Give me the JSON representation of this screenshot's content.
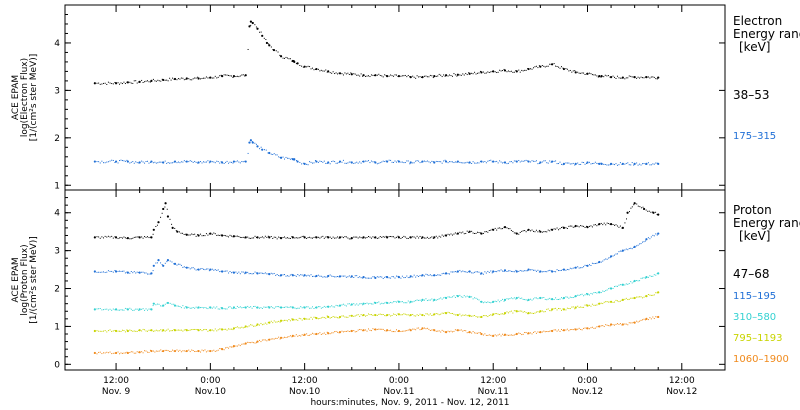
{
  "chart_data": [
    {
      "type": "scatter",
      "instrument": "ACE EPAM",
      "ylabel": "log(Electron Flux)",
      "yunits": "[1/(cm²s ster MeV)]",
      "ylim": [
        0.9,
        4.8
      ],
      "yticks": [
        1,
        2,
        3,
        4
      ],
      "legend_title": [
        "Electron",
        "Energy range",
        "[keV]"
      ],
      "series": [
        {
          "name": "38–53",
          "color": "#000000",
          "x": [
            -0.45,
            0,
            0.25,
            0.5,
            0.75,
            1,
            1.25,
            1.5,
            1.75,
            2,
            2.25,
            2.5,
            2.75,
            2.83,
            2.86,
            2.9,
            3,
            3.1,
            3.2,
            3.25,
            3.35,
            3.5,
            3.75,
            3.78,
            3.85,
            4,
            4.25,
            4.5,
            4.75,
            5,
            5.25,
            5.5,
            5.75,
            6,
            6.25,
            6.5,
            6.75,
            7,
            7.25,
            7.5,
            7.75,
            8,
            8.25,
            8.5,
            8.75,
            9,
            9.25,
            9.5,
            9.75,
            10,
            10.25,
            10.3,
            10.5,
            10.75,
            11,
            11.25,
            11.5
          ],
          "values": [
            3.15,
            3.15,
            3.17,
            3.18,
            3.2,
            3.22,
            3.24,
            3.25,
            3.25,
            3.27,
            3.3,
            3.3,
            3.32,
            4.35,
            4.45,
            4.42,
            4.3,
            4.15,
            4.0,
            3.95,
            3.85,
            3.72,
            3.62,
            3.6,
            3.57,
            3.5,
            3.45,
            3.4,
            3.36,
            3.34,
            3.32,
            3.32,
            3.3,
            3.3,
            3.28,
            3.28,
            3.3,
            3.32,
            3.33,
            3.35,
            3.38,
            3.4,
            3.42,
            3.4,
            3.45,
            3.5,
            3.55,
            3.45,
            3.38,
            3.35,
            3.3,
            3.3,
            3.28,
            3.27,
            3.28,
            3.28,
            3.27
          ]
        },
        {
          "name": "175–315",
          "color": "#1f6fd6",
          "x": [
            -0.45,
            0,
            0.25,
            0.5,
            0.75,
            1,
            1.25,
            1.5,
            1.75,
            2,
            2.25,
            2.5,
            2.75,
            2.83,
            2.86,
            2.9,
            3,
            3.1,
            3.25,
            3.5,
            3.75,
            3.78,
            3.85,
            4,
            4.25,
            4.5,
            4.75,
            5,
            5.25,
            5.5,
            5.75,
            6,
            6.25,
            6.5,
            6.75,
            7,
            7.25,
            7.5,
            7.75,
            8,
            8.25,
            8.5,
            8.75,
            9,
            9.25,
            9.5,
            9.75,
            10,
            10.25,
            10.3,
            10.5,
            10.75,
            11,
            11.25,
            11.5
          ],
          "values": [
            1.5,
            1.5,
            1.5,
            1.48,
            1.5,
            1.48,
            1.5,
            1.5,
            1.48,
            1.5,
            1.48,
            1.5,
            1.5,
            1.9,
            1.95,
            1.9,
            1.82,
            1.75,
            1.68,
            1.58,
            1.55,
            1.55,
            1.5,
            1.45,
            1.5,
            1.48,
            1.5,
            1.48,
            1.5,
            1.48,
            1.5,
            1.5,
            1.48,
            1.5,
            1.48,
            1.5,
            1.5,
            1.48,
            1.5,
            1.5,
            1.48,
            1.5,
            1.5,
            1.48,
            1.5,
            1.45,
            1.45,
            1.48,
            1.45,
            1.45,
            1.45,
            1.45,
            1.45,
            1.45,
            1.45
          ]
        }
      ]
    },
    {
      "type": "scatter",
      "instrument": "ACE EPAM",
      "ylabel": "log(Proton Flux)",
      "yunits": "[1/(cm²s ster MeV)]",
      "ylim": [
        -0.15,
        4.6
      ],
      "yticks": [
        0,
        1,
        2,
        3,
        4
      ],
      "legend_title": [
        "Proton",
        "Energy range",
        "[keV]"
      ],
      "x_tick_labels": [
        "12:00|Nov. 9",
        "0:00|Nov.10",
        "12:00|Nov.10",
        "0:00|Nov.11",
        "12:00|Nov.11",
        "0:00|Nov.12",
        "12:00|Nov.12"
      ],
      "x_tick_hours": [
        -12,
        0,
        12,
        24,
        36,
        48,
        60
      ],
      "xlabel": "hours:minutes, Nov.  9, 2011 - Nov. 12, 2011",
      "series": [
        {
          "name": "47–68",
          "color": "#000000",
          "x": [
            -0.45,
            0,
            0.25,
            0.5,
            0.75,
            0.8,
            0.9,
            1,
            1.05,
            1.1,
            1.2,
            1.3,
            1.5,
            1.75,
            2,
            2.25,
            2.5,
            2.75,
            3,
            3.25,
            3.5,
            3.75,
            4,
            4.25,
            4.5,
            4.75,
            5,
            5.25,
            5.5,
            5.75,
            6,
            6.25,
            6.5,
            6.75,
            7,
            7.25,
            7.5,
            7.75,
            8,
            8.25,
            8.5,
            8.75,
            9,
            9.25,
            9.5,
            9.75,
            10,
            10.25,
            10.5,
            10.75,
            10.85,
            11,
            11.2,
            11.4,
            11.5
          ],
          "values": [
            3.35,
            3.35,
            3.33,
            3.35,
            3.35,
            3.55,
            3.75,
            4.1,
            4.25,
            3.9,
            3.6,
            3.5,
            3.42,
            3.4,
            3.45,
            3.4,
            3.38,
            3.35,
            3.35,
            3.35,
            3.33,
            3.35,
            3.35,
            3.35,
            3.35,
            3.35,
            3.33,
            3.35,
            3.35,
            3.35,
            3.35,
            3.35,
            3.35,
            3.35,
            3.4,
            3.45,
            3.5,
            3.45,
            3.55,
            3.62,
            3.45,
            3.55,
            3.5,
            3.55,
            3.6,
            3.65,
            3.62,
            3.7,
            3.7,
            3.6,
            4.0,
            4.25,
            4.1,
            4.0,
            3.95
          ]
        },
        {
          "name": "115–195",
          "color": "#1f6fd6",
          "x": [
            -0.45,
            0,
            0.25,
            0.5,
            0.75,
            0.8,
            0.9,
            1,
            1.1,
            1.25,
            1.5,
            1.75,
            2,
            2.25,
            2.5,
            2.75,
            3,
            3.25,
            3.5,
            3.75,
            4,
            4.25,
            4.5,
            4.75,
            5,
            5.25,
            5.5,
            5.75,
            6,
            6.25,
            6.5,
            6.75,
            7,
            7.25,
            7.5,
            7.75,
            8,
            8.25,
            8.5,
            8.75,
            9,
            9.25,
            9.5,
            9.75,
            10,
            10.25,
            10.5,
            10.75,
            11,
            11.25,
            11.5
          ],
          "values": [
            2.45,
            2.45,
            2.42,
            2.42,
            2.4,
            2.6,
            2.75,
            2.6,
            2.75,
            2.65,
            2.55,
            2.5,
            2.5,
            2.45,
            2.42,
            2.42,
            2.4,
            2.38,
            2.35,
            2.35,
            2.35,
            2.33,
            2.33,
            2.32,
            2.32,
            2.3,
            2.28,
            2.3,
            2.3,
            2.32,
            2.35,
            2.35,
            2.4,
            2.45,
            2.45,
            2.4,
            2.45,
            2.48,
            2.45,
            2.5,
            2.45,
            2.45,
            2.5,
            2.55,
            2.6,
            2.7,
            2.85,
            3.0,
            3.1,
            3.3,
            3.45
          ]
        },
        {
          "name": "310–580",
          "color": "#33d1d1",
          "x": [
            -0.45,
            0,
            0.25,
            0.5,
            0.75,
            0.8,
            1,
            1.1,
            1.25,
            1.5,
            1.75,
            2,
            2.25,
            2.5,
            2.75,
            3,
            3.25,
            3.5,
            3.75,
            4,
            4.25,
            4.5,
            4.75,
            5,
            5.25,
            5.5,
            5.75,
            6,
            6.25,
            6.5,
            6.75,
            7,
            7.25,
            7.5,
            7.75,
            8,
            8.25,
            8.5,
            8.75,
            9,
            9.25,
            9.5,
            9.75,
            10,
            10.25,
            10.5,
            10.75,
            11,
            11.25,
            11.5
          ],
          "values": [
            1.45,
            1.45,
            1.45,
            1.45,
            1.45,
            1.6,
            1.55,
            1.62,
            1.55,
            1.5,
            1.5,
            1.5,
            1.48,
            1.5,
            1.5,
            1.5,
            1.5,
            1.5,
            1.5,
            1.5,
            1.5,
            1.52,
            1.55,
            1.58,
            1.6,
            1.62,
            1.62,
            1.65,
            1.65,
            1.7,
            1.7,
            1.75,
            1.8,
            1.78,
            1.65,
            1.65,
            1.7,
            1.75,
            1.7,
            1.75,
            1.72,
            1.75,
            1.8,
            1.85,
            1.9,
            2.0,
            2.1,
            2.2,
            2.3,
            2.4
          ]
        },
        {
          "name": "795–1193",
          "color": "#c8d400",
          "x": [
            -0.45,
            0,
            0.25,
            0.5,
            0.75,
            1,
            1.25,
            1.5,
            1.75,
            2,
            2.25,
            2.5,
            2.75,
            3,
            3.25,
            3.5,
            3.75,
            4,
            4.25,
            4.5,
            4.75,
            5,
            5.25,
            5.5,
            5.75,
            6,
            6.25,
            6.5,
            6.75,
            7,
            7.25,
            7.5,
            7.75,
            8,
            8.25,
            8.5,
            8.75,
            9,
            9.25,
            9.5,
            9.75,
            10,
            10.25,
            10.5,
            10.75,
            11,
            11.25,
            11.5
          ],
          "values": [
            0.88,
            0.88,
            0.88,
            0.9,
            0.9,
            0.9,
            0.9,
            0.9,
            0.9,
            0.9,
            0.92,
            0.95,
            1.0,
            1.05,
            1.1,
            1.15,
            1.18,
            1.2,
            1.22,
            1.25,
            1.25,
            1.28,
            1.3,
            1.3,
            1.3,
            1.32,
            1.3,
            1.3,
            1.32,
            1.35,
            1.3,
            1.28,
            1.25,
            1.32,
            1.35,
            1.4,
            1.35,
            1.4,
            1.45,
            1.45,
            1.5,
            1.55,
            1.6,
            1.65,
            1.7,
            1.75,
            1.8,
            1.9
          ]
        },
        {
          "name": "1060–1900",
          "color": "#f08a1c",
          "x": [
            -0.45,
            0,
            0.25,
            0.5,
            0.75,
            1,
            1.25,
            1.5,
            1.75,
            2,
            2.25,
            2.5,
            2.75,
            3,
            3.25,
            3.5,
            3.75,
            4,
            4.25,
            4.5,
            4.75,
            5,
            5.25,
            5.5,
            5.75,
            6,
            6.25,
            6.5,
            6.75,
            7,
            7.25,
            7.5,
            7.75,
            8,
            8.25,
            8.5,
            8.75,
            9,
            9.25,
            9.5,
            9.75,
            10,
            10.25,
            10.5,
            10.75,
            11,
            11.25,
            11.5
          ],
          "values": [
            0.3,
            0.3,
            0.3,
            0.32,
            0.35,
            0.35,
            0.35,
            0.35,
            0.35,
            0.35,
            0.4,
            0.48,
            0.55,
            0.6,
            0.65,
            0.7,
            0.75,
            0.78,
            0.8,
            0.82,
            0.85,
            0.88,
            0.9,
            0.92,
            0.9,
            0.88,
            0.9,
            0.95,
            0.9,
            0.85,
            0.9,
            0.85,
            0.8,
            0.75,
            0.78,
            0.8,
            0.82,
            0.85,
            0.88,
            0.9,
            0.92,
            0.95,
            1.0,
            1.05,
            1.05,
            1.1,
            1.2,
            1.25
          ]
        }
      ]
    }
  ]
}
